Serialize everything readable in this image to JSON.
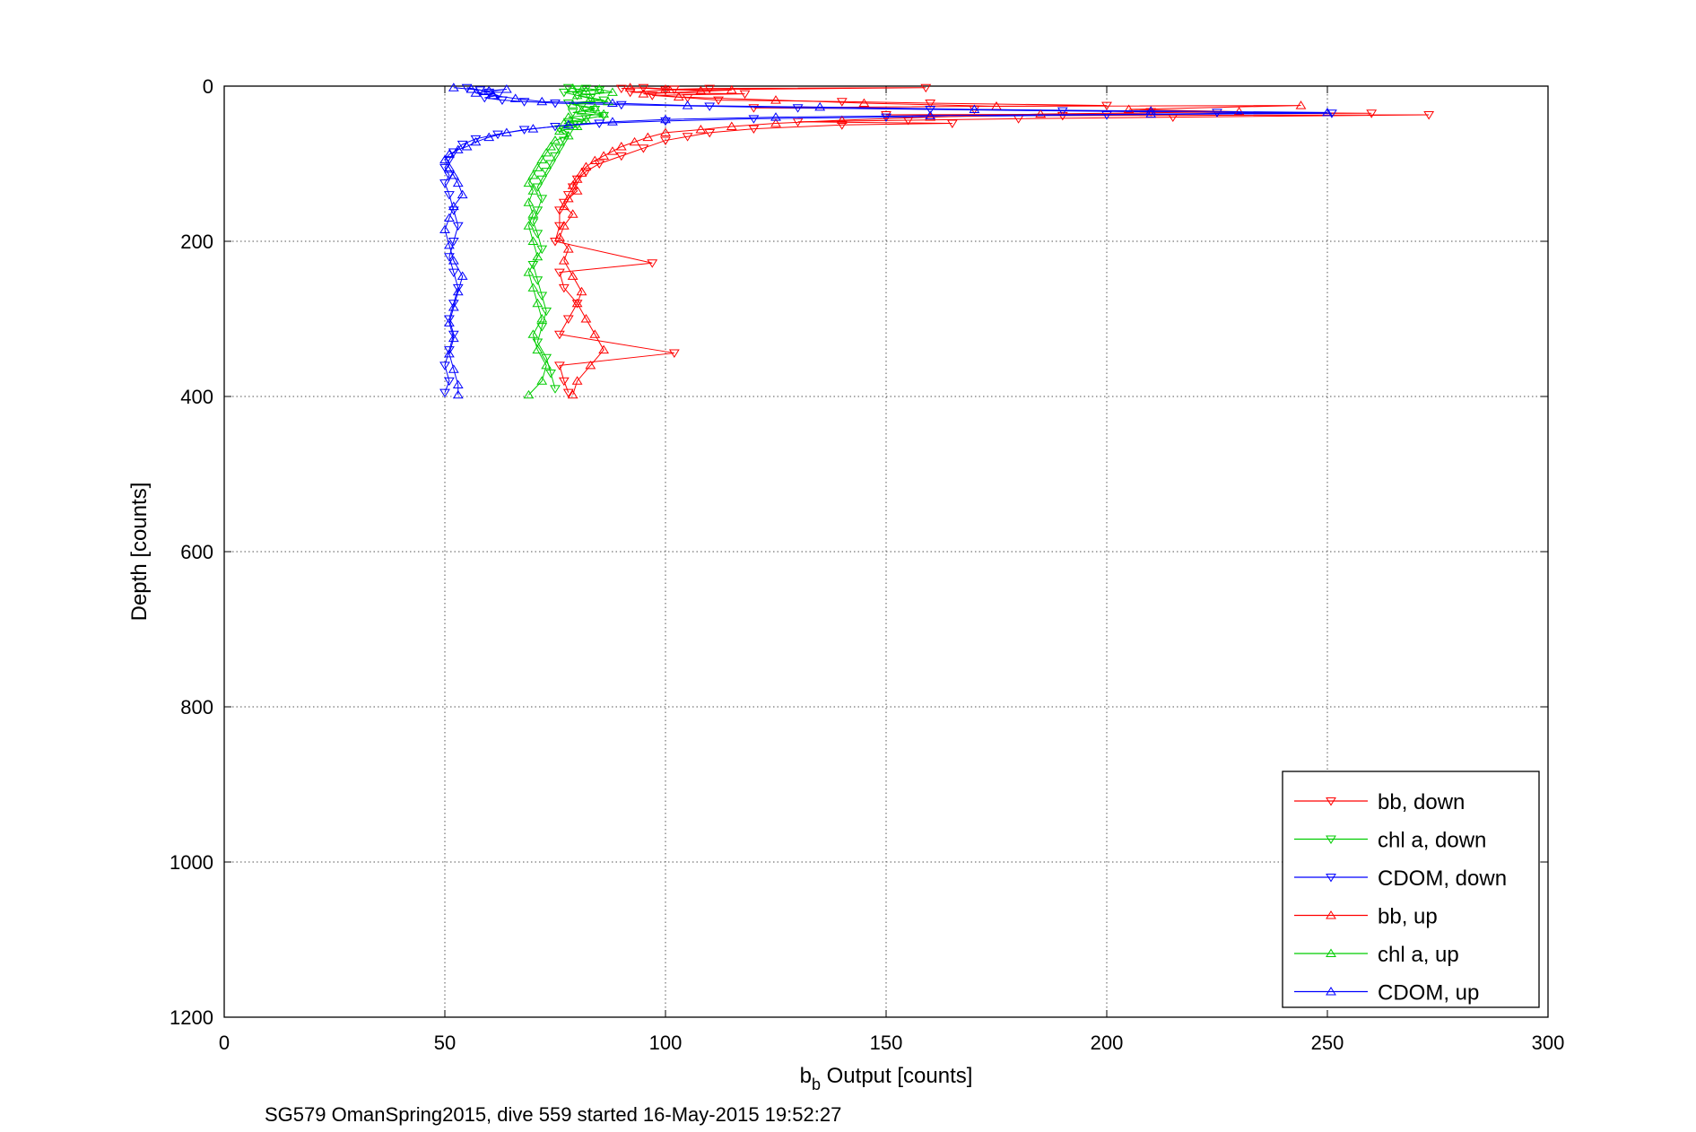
{
  "chart_data": {
    "type": "scatter",
    "xlabel_main": "b",
    "xlabel_sub": "b",
    "xlabel_rest": " Output [counts]",
    "ylabel": "Depth [counts]",
    "caption": "SG579 OmanSpring2015, dive 559 started 16-May-2015 19:52:27",
    "xlim": [
      0,
      300
    ],
    "ylim": [
      0,
      1200
    ],
    "y_reversed": true,
    "grid": true,
    "legend_position": "bottom-right",
    "x_ticks": [
      "0",
      "50",
      "100",
      "150",
      "200",
      "250",
      "300"
    ],
    "y_ticks": [
      "0",
      "200",
      "400",
      "600",
      "800",
      "1000",
      "1200"
    ],
    "series": [
      {
        "name": "bb, down",
        "color": "#ff0000",
        "marker": "triangle-down",
        "points": [
          [
            90,
            3
          ],
          [
            95,
            2
          ],
          [
            102,
            4
          ],
          [
            110,
            3
          ],
          [
            159,
            2
          ],
          [
            100,
            5
          ],
          [
            92,
            8
          ],
          [
            118,
            10
          ],
          [
            97,
            12
          ],
          [
            105,
            15
          ],
          [
            112,
            18
          ],
          [
            140,
            20
          ],
          [
            160,
            22
          ],
          [
            200,
            25
          ],
          [
            120,
            28
          ],
          [
            170,
            30
          ],
          [
            210,
            33
          ],
          [
            260,
            35
          ],
          [
            150,
            37
          ],
          [
            190,
            38
          ],
          [
            273,
            37
          ],
          [
            215,
            40
          ],
          [
            180,
            42
          ],
          [
            155,
            44
          ],
          [
            130,
            46
          ],
          [
            165,
            48
          ],
          [
            140,
            50
          ],
          [
            120,
            55
          ],
          [
            110,
            60
          ],
          [
            105,
            65
          ],
          [
            100,
            70
          ],
          [
            95,
            80
          ],
          [
            90,
            90
          ],
          [
            85,
            100
          ],
          [
            82,
            110
          ],
          [
            80,
            120
          ],
          [
            79,
            130
          ],
          [
            78,
            140
          ],
          [
            77,
            150
          ],
          [
            76,
            160
          ],
          [
            76,
            180
          ],
          [
            75,
            200
          ],
          [
            97,
            228
          ],
          [
            76,
            240
          ],
          [
            77,
            260
          ],
          [
            80,
            280
          ],
          [
            78,
            300
          ],
          [
            76,
            320
          ],
          [
            102,
            344
          ],
          [
            76,
            360
          ],
          [
            77,
            380
          ],
          [
            78,
            395
          ]
        ]
      },
      {
        "name": "chl a, down",
        "color": "#00cc00",
        "marker": "triangle-down",
        "points": [
          [
            78,
            2
          ],
          [
            80,
            4
          ],
          [
            82,
            3
          ],
          [
            85,
            5
          ],
          [
            77,
            8
          ],
          [
            80,
            12
          ],
          [
            83,
            15
          ],
          [
            86,
            18
          ],
          [
            78,
            22
          ],
          [
            81,
            26
          ],
          [
            84,
            30
          ],
          [
            79,
            34
          ],
          [
            86,
            38
          ],
          [
            82,
            42
          ],
          [
            78,
            46
          ],
          [
            80,
            50
          ],
          [
            76,
            55
          ],
          [
            78,
            60
          ],
          [
            77,
            70
          ],
          [
            76,
            80
          ],
          [
            75,
            90
          ],
          [
            74,
            100
          ],
          [
            73,
            110
          ],
          [
            72,
            120
          ],
          [
            71,
            130
          ],
          [
            72,
            145
          ],
          [
            71,
            160
          ],
          [
            70,
            175
          ],
          [
            71,
            190
          ],
          [
            72,
            210
          ],
          [
            70,
            230
          ],
          [
            71,
            250
          ],
          [
            72,
            270
          ],
          [
            73,
            290
          ],
          [
            72,
            310
          ],
          [
            71,
            330
          ],
          [
            73,
            350
          ],
          [
            74,
            370
          ],
          [
            75,
            390
          ]
        ]
      },
      {
        "name": "CDOM, down",
        "color": "#0000ff",
        "marker": "triangle-down",
        "points": [
          [
            55,
            2
          ],
          [
            58,
            5
          ],
          [
            60,
            8
          ],
          [
            62,
            12
          ],
          [
            59,
            15
          ],
          [
            63,
            18
          ],
          [
            68,
            20
          ],
          [
            75,
            22
          ],
          [
            90,
            24
          ],
          [
            110,
            26
          ],
          [
            130,
            28
          ],
          [
            160,
            30
          ],
          [
            190,
            32
          ],
          [
            225,
            34
          ],
          [
            251,
            35
          ],
          [
            200,
            37
          ],
          [
            150,
            40
          ],
          [
            120,
            42
          ],
          [
            100,
            45
          ],
          [
            85,
            48
          ],
          [
            75,
            52
          ],
          [
            68,
            56
          ],
          [
            62,
            62
          ],
          [
            57,
            68
          ],
          [
            54,
            75
          ],
          [
            52,
            85
          ],
          [
            51,
            95
          ],
          [
            50,
            105
          ],
          [
            51,
            115
          ],
          [
            50,
            125
          ],
          [
            51,
            140
          ],
          [
            52,
            160
          ],
          [
            53,
            180
          ],
          [
            52,
            200
          ],
          [
            51,
            220
          ],
          [
            52,
            240
          ],
          [
            53,
            260
          ],
          [
            52,
            280
          ],
          [
            51,
            300
          ],
          [
            52,
            320
          ],
          [
            51,
            340
          ],
          [
            50,
            360
          ],
          [
            51,
            380
          ],
          [
            50,
            395
          ]
        ]
      },
      {
        "name": "bb, up",
        "color": "#ff0000",
        "marker": "triangle-up",
        "points": [
          [
            92,
            2
          ],
          [
            100,
            4
          ],
          [
            108,
            6
          ],
          [
            115,
            5
          ],
          [
            95,
            10
          ],
          [
            103,
            14
          ],
          [
            125,
            18
          ],
          [
            145,
            22
          ],
          [
            175,
            26
          ],
          [
            244,
            25
          ],
          [
            205,
            30
          ],
          [
            230,
            33
          ],
          [
            185,
            36
          ],
          [
            160,
            40
          ],
          [
            140,
            44
          ],
          [
            125,
            48
          ],
          [
            115,
            52
          ],
          [
            108,
            56
          ],
          [
            100,
            60
          ],
          [
            96,
            66
          ],
          [
            93,
            72
          ],
          [
            90,
            78
          ],
          [
            88,
            84
          ],
          [
            86,
            90
          ],
          [
            84,
            96
          ],
          [
            82,
            104
          ],
          [
            81,
            112
          ],
          [
            80,
            120
          ],
          [
            79,
            128
          ],
          [
            80,
            135
          ],
          [
            78,
            145
          ],
          [
            77,
            155
          ],
          [
            79,
            165
          ],
          [
            77,
            180
          ],
          [
            76,
            195
          ],
          [
            78,
            210
          ],
          [
            77,
            225
          ],
          [
            79,
            245
          ],
          [
            81,
            265
          ],
          [
            80,
            280
          ],
          [
            82,
            300
          ],
          [
            84,
            320
          ],
          [
            86,
            340
          ],
          [
            83,
            360
          ],
          [
            80,
            380
          ],
          [
            79,
            398
          ]
        ]
      },
      {
        "name": "chl a, up",
        "color": "#00cc00",
        "marker": "triangle-up",
        "points": [
          [
            79,
            3
          ],
          [
            82,
            6
          ],
          [
            85,
            4
          ],
          [
            88,
            8
          ],
          [
            80,
            12
          ],
          [
            83,
            16
          ],
          [
            87,
            20
          ],
          [
            79,
            24
          ],
          [
            84,
            28
          ],
          [
            81,
            32
          ],
          [
            86,
            36
          ],
          [
            78,
            40
          ],
          [
            82,
            44
          ],
          [
            77,
            48
          ],
          [
            80,
            52
          ],
          [
            76,
            58
          ],
          [
            78,
            64
          ],
          [
            75,
            70
          ],
          [
            74,
            78
          ],
          [
            73,
            86
          ],
          [
            72,
            95
          ],
          [
            71,
            105
          ],
          [
            70,
            115
          ],
          [
            69,
            125
          ],
          [
            70,
            135
          ],
          [
            69,
            150
          ],
          [
            70,
            165
          ],
          [
            69,
            180
          ],
          [
            70,
            200
          ],
          [
            71,
            220
          ],
          [
            69,
            240
          ],
          [
            70,
            260
          ],
          [
            71,
            280
          ],
          [
            72,
            300
          ],
          [
            70,
            320
          ],
          [
            71,
            340
          ],
          [
            73,
            360
          ],
          [
            72,
            380
          ],
          [
            69,
            398
          ]
        ]
      },
      {
        "name": "CDOM, up",
        "color": "#0000ff",
        "marker": "triangle-up",
        "points": [
          [
            52,
            2
          ],
          [
            56,
            4
          ],
          [
            60,
            6
          ],
          [
            64,
            4
          ],
          [
            57,
            9
          ],
          [
            61,
            12
          ],
          [
            66,
            16
          ],
          [
            72,
            20
          ],
          [
            88,
            22
          ],
          [
            105,
            25
          ],
          [
            135,
            27
          ],
          [
            170,
            30
          ],
          [
            210,
            32
          ],
          [
            250,
            34
          ],
          [
            210,
            36
          ],
          [
            160,
            38
          ],
          [
            125,
            40
          ],
          [
            100,
            43
          ],
          [
            88,
            46
          ],
          [
            78,
            50
          ],
          [
            70,
            55
          ],
          [
            64,
            60
          ],
          [
            60,
            66
          ],
          [
            57,
            72
          ],
          [
            55,
            78
          ],
          [
            53,
            82
          ],
          [
            51,
            88
          ],
          [
            50,
            95
          ],
          [
            51,
            105
          ],
          [
            52,
            115
          ],
          [
            53,
            125
          ],
          [
            54,
            140
          ],
          [
            52,
            155
          ],
          [
            51,
            170
          ],
          [
            50,
            185
          ],
          [
            51,
            205
          ],
          [
            52,
            225
          ],
          [
            54,
            245
          ],
          [
            53,
            265
          ],
          [
            52,
            285
          ],
          [
            51,
            305
          ],
          [
            52,
            325
          ],
          [
            51,
            345
          ],
          [
            52,
            365
          ],
          [
            53,
            385
          ],
          [
            53,
            398
          ]
        ]
      }
    ]
  }
}
